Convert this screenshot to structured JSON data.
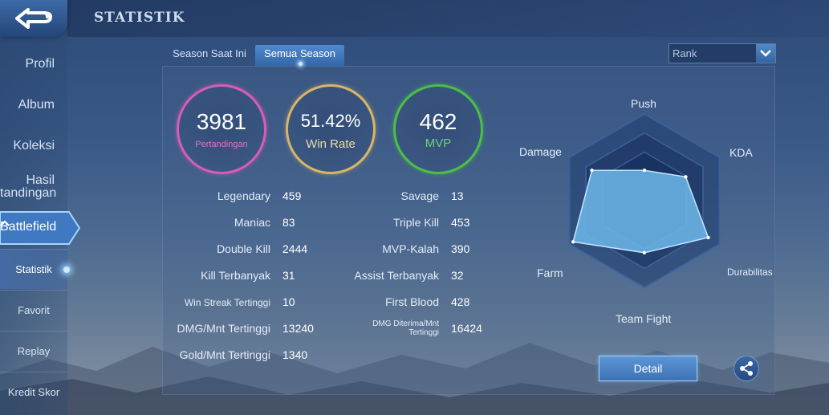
{
  "header": {
    "title": "STATISTIK"
  },
  "sidebar": {
    "items": [
      {
        "label": "Profil"
      },
      {
        "label": "Album"
      },
      {
        "label": "Koleksi"
      },
      {
        "label_line1": "Hasil",
        "label_line2": "tandingan"
      },
      {
        "label": "Battlefield"
      }
    ],
    "sub_items": [
      {
        "label": "Statistik",
        "active": true
      },
      {
        "label": "Favorit"
      },
      {
        "label": "Replay"
      },
      {
        "label": "Kredit Skor"
      }
    ]
  },
  "tabs": [
    {
      "label": "Season Saat Ini"
    },
    {
      "label": "Semua Season",
      "active": true
    }
  ],
  "filter": {
    "selected": "Rank"
  },
  "summary": {
    "matches": {
      "value": "3981",
      "label": "Pertandingan",
      "color": "#d85cb8"
    },
    "win_rate": {
      "value": "51.42%",
      "label": "Win Rate",
      "color": "#d8b664"
    },
    "mvp": {
      "value": "462",
      "label": "MVP",
      "color": "#4cbf45"
    }
  },
  "stats_left": [
    {
      "label": "Legendary",
      "value": "459"
    },
    {
      "label": "Maniac",
      "value": "83"
    },
    {
      "label": "Double Kill",
      "value": "2444"
    },
    {
      "label": "Kill Terbanyak",
      "value": "31"
    },
    {
      "label": "Win Streak Tertinggi",
      "value": "10"
    },
    {
      "label": "DMG/Mnt Tertinggi",
      "value": "13240"
    },
    {
      "label": "Gold/Mnt Tertinggi",
      "value": "1340"
    }
  ],
  "stats_right": [
    {
      "label": "Savage",
      "value": "13"
    },
    {
      "label": "Triple Kill",
      "value": "453"
    },
    {
      "label": "MVP-Kalah",
      "value": "390"
    },
    {
      "label": "Assist Terbanyak",
      "value": "32"
    },
    {
      "label": "First Blood",
      "value": "428"
    },
    {
      "label_line1": "DMG Diterima/Mnt",
      "label_line2": "Tertinggi",
      "value": "16424"
    }
  ],
  "radar": {
    "axes": [
      "Push",
      "KDA",
      "Durabilitas",
      "Team Fight",
      "Farm",
      "Damage"
    ],
    "values": [
      0.35,
      0.55,
      0.85,
      0.6,
      0.95,
      0.7
    ]
  },
  "buttons": {
    "detail": "Detail"
  }
}
